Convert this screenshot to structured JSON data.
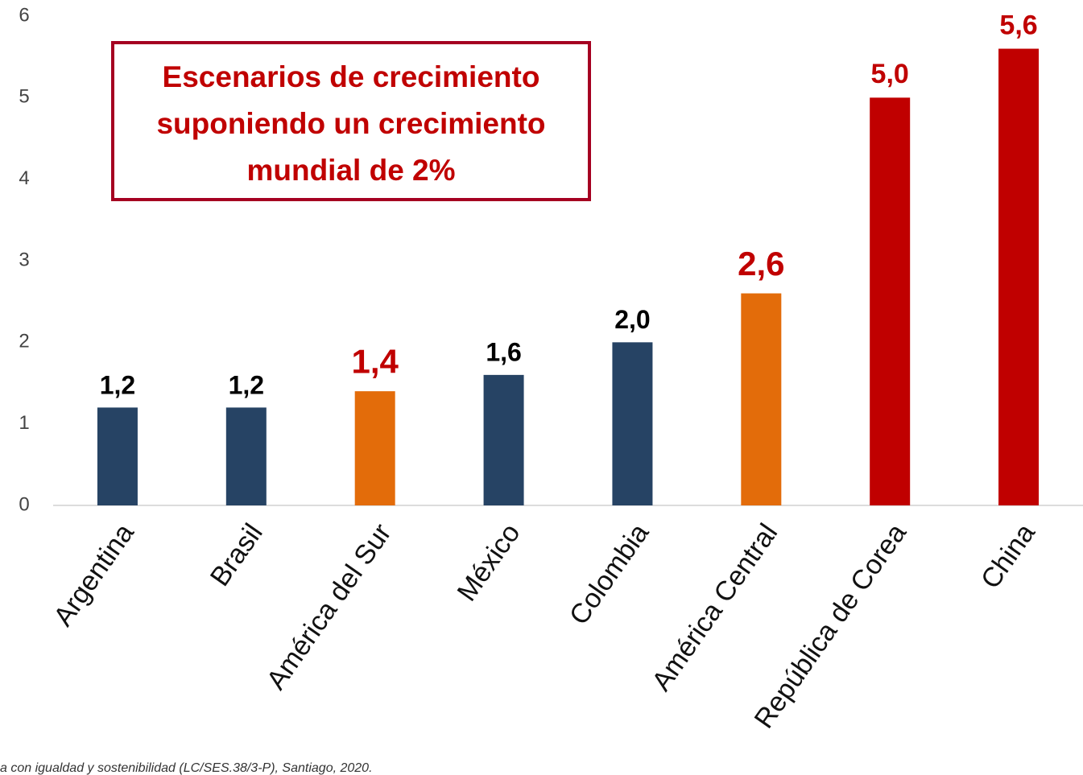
{
  "chart_data": {
    "type": "bar",
    "categories": [
      "Argentina",
      "Brasil",
      "América del Sur",
      "México",
      "Colombia",
      "América Central",
      "República de Corea",
      "China"
    ],
    "values": [
      1.2,
      1.2,
      1.4,
      1.6,
      2.0,
      2.6,
      5.0,
      5.6
    ],
    "value_labels": [
      "1,2",
      "1,2",
      "1,4",
      "1,6",
      "2,0",
      "2,6",
      "5,0",
      "5,6"
    ],
    "colors": [
      "#264364",
      "#264364",
      "#e36c0a",
      "#264364",
      "#264364",
      "#e36c0a",
      "#c00000",
      "#c00000"
    ],
    "label_colors": [
      "#000000",
      "#000000",
      "#c00000",
      "#000000",
      "#000000",
      "#c00000",
      "#c00000",
      "#c00000"
    ],
    "ylim": [
      0,
      6
    ],
    "yticks": [
      0,
      1,
      2,
      3,
      4,
      5,
      6
    ],
    "grid": false,
    "annotation": [
      "Escenarios de crecimiento",
      "suponiendo un crecimiento",
      "mundial de 2%"
    ],
    "annotation_color": "#c00000",
    "source": "a con igualdad y sostenibilidad (LC/SES.38/3-P), Santiago, 2020."
  }
}
